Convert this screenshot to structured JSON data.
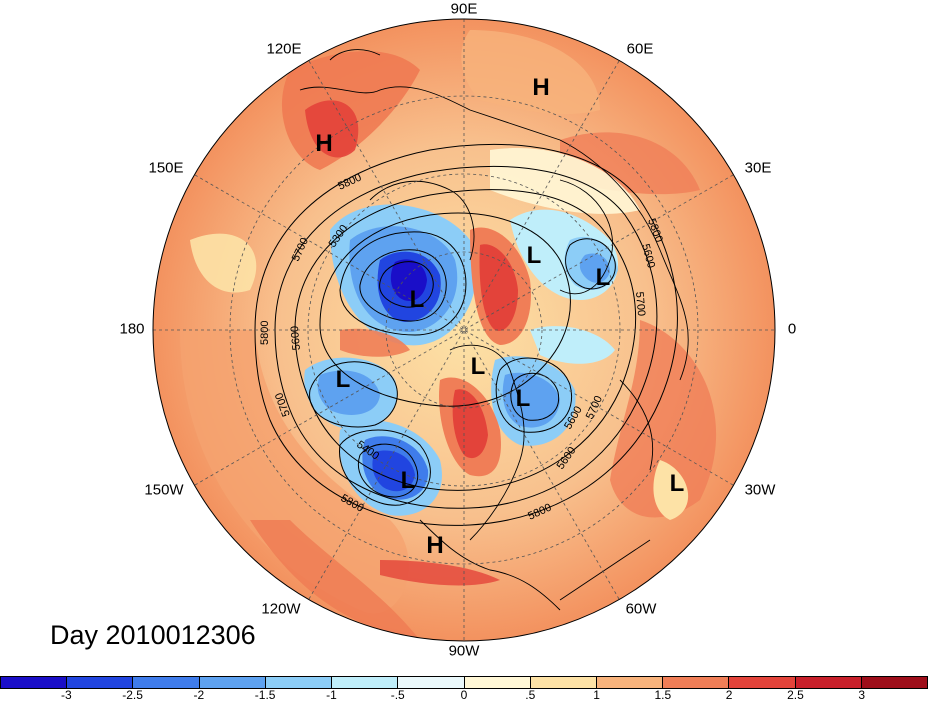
{
  "title": "Day 2010012306",
  "longitude_labels": [
    "90E",
    "60E",
    "30E",
    "0",
    "30W",
    "60W",
    "90W",
    "120W",
    "150W",
    "180",
    "150E",
    "120E"
  ],
  "pressure_centers": [
    "H",
    "H",
    "H",
    "L",
    "L",
    "L",
    "L",
    "L",
    "L",
    "L",
    "L"
  ],
  "contour_labels": [
    "5800",
    "5700",
    "5600",
    "5300",
    "5800",
    "5700",
    "5600",
    "5800",
    "5700",
    "5600",
    "5400",
    "5600",
    "5700",
    "5800",
    "5800"
  ],
  "colorbar": {
    "ticks": [
      "-3",
      "-2.5",
      "-2",
      "-1.5",
      "-1",
      "-.5",
      "0",
      ".5",
      "1",
      "1.5",
      "2",
      "2.5",
      "3"
    ],
    "colors": [
      "#1a0ec8",
      "#2145e0",
      "#3f7ceb",
      "#5ea2f0",
      "#8ccdf7",
      "#bfeefa",
      "#eaf8fb",
      "#fff7d6",
      "#fde2a6",
      "#f8b37c",
      "#f07e57",
      "#e3433a",
      "#c81f2a",
      "#9e0e1a"
    ]
  }
}
